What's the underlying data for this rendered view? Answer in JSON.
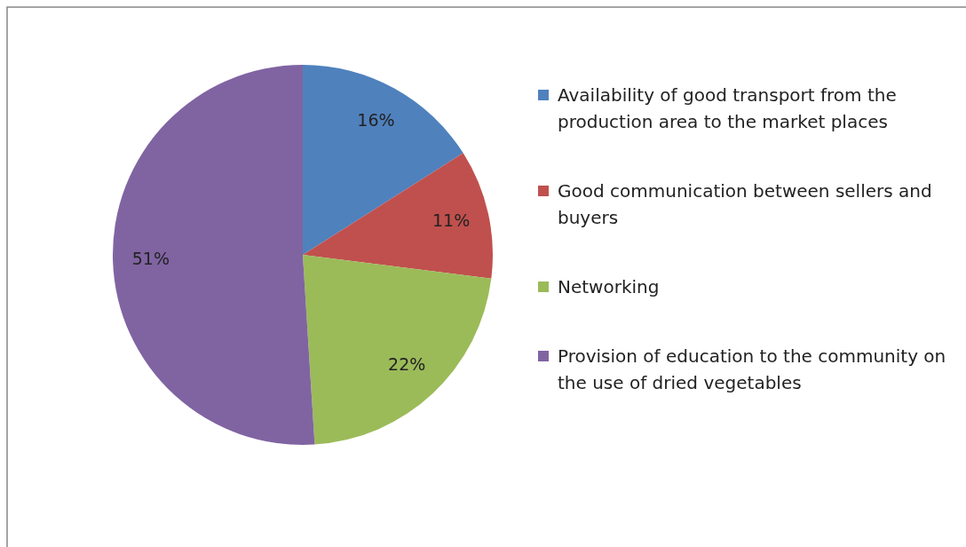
{
  "chart_data": {
    "type": "pie",
    "categories": [
      "Availability of good transport from the production area to the market places",
      "Good communication between sellers and buyers",
      "Networking",
      "Provision of education to the community on the use of dried vegetables"
    ],
    "values": [
      16,
      11,
      22,
      51
    ],
    "value_labels": [
      "16%",
      "11%",
      "22%",
      "51%"
    ],
    "colors": [
      "#4f81bd",
      "#c0504d",
      "#9bbb59",
      "#8064a2"
    ],
    "legend": "right"
  }
}
